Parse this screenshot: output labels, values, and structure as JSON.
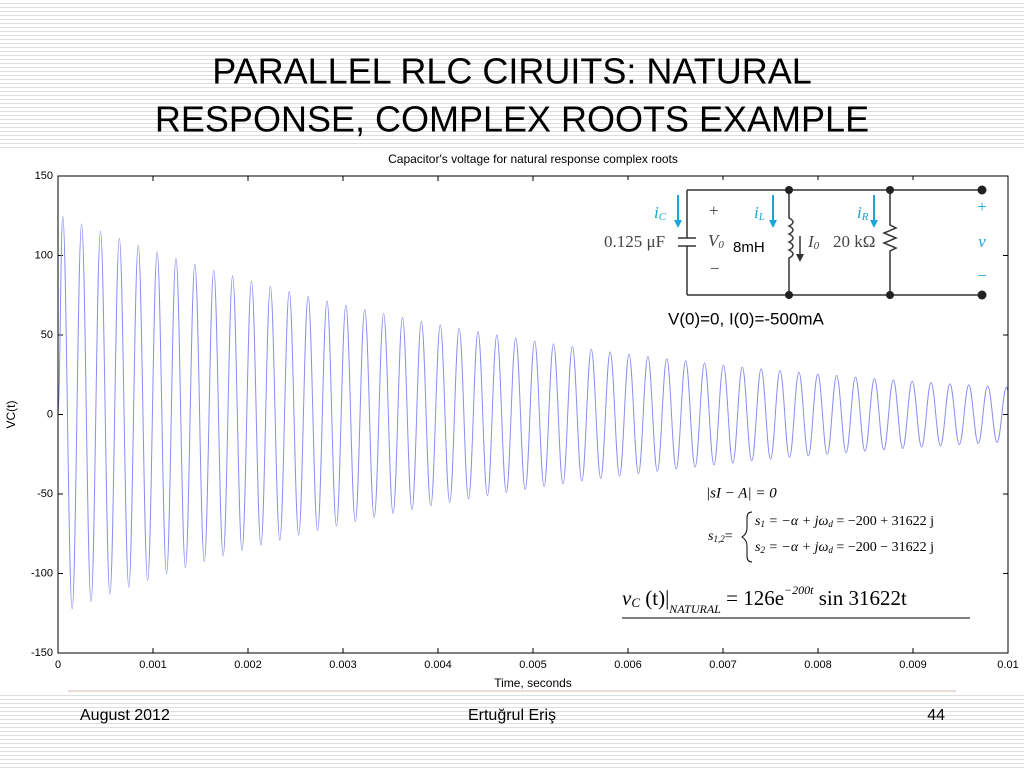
{
  "slide": {
    "title_lines": [
      "PARALLEL RLC CIRUITS: NATURAL",
      "RESPONSE, COMPLEX ROOTS EXAMPLE"
    ],
    "footer": {
      "date": "August 2012",
      "author": "Ertuğrul Eriş",
      "page": "44"
    }
  },
  "chart_data": {
    "type": "line",
    "title": "Capacitor's voltage for natural response complex roots",
    "x_label": "Time, seconds",
    "y_label": "VC(t)",
    "color": "#8c8cf2",
    "xlim": [
      0,
      0.01
    ],
    "xticks": [
      0,
      0.001,
      0.002,
      0.003,
      0.004,
      0.005,
      0.006,
      0.007,
      0.008,
      0.009,
      0.01
    ],
    "ylim": [
      -150,
      150
    ],
    "yticks": [
      -150,
      -100,
      -50,
      0,
      50,
      100,
      150
    ],
    "x": [
      0,
      4.97e-05,
      0.000149,
      0.0002484,
      0.0003477,
      0.0004471,
      0.0005464,
      0.0006458,
      0.0007451,
      0.0008445,
      0.0009438,
      0.0010432,
      0.0011425,
      0.0012419,
      0.0013412,
      0.0014406,
      0.0015399,
      0.0016393,
      0.0017386,
      0.001838,
      0.0019373,
      0.0020367,
      0.002136,
      0.0022354,
      0.0023347,
      0.0024341,
      0.0025334,
      0.0026328,
      0.0027321,
      0.0028315,
      0.0029308,
      0.0030302,
      0.0031295,
      0.0032289,
      0.0033282,
      0.0034276,
      0.0035269,
      0.0036263,
      0.0037256,
      0.003825,
      0.0039243,
      0.0040237,
      0.004123,
      0.0042224,
      0.0043217,
      0.0044211,
      0.0045204,
      0.0046198,
      0.0047191,
      0.0048185,
      0.0049178,
      0.0050172,
      0.0051165,
      0.0052159,
      0.0053152,
      0.0054146,
      0.0055139,
      0.0056133,
      0.0057126,
      0.005812,
      0.0059113,
      0.0060107,
      0.00611,
      0.0062094,
      0.0063087,
      0.0064081,
      0.0065074,
      0.0066068,
      0.0067061,
      0.0068055,
      0.0069048,
      0.0070042,
      0.0071035,
      0.0072029,
      0.0073022,
      0.0074016,
      0.0075009,
      0.0076003,
      0.0076996,
      0.007799,
      0.0078983,
      0.0079977,
      0.008097,
      0.0081964,
      0.0082957,
      0.0083951,
      0.0084944,
      0.0085938,
      0.0086931,
      0.0087925,
      0.0088918,
      0.0089912,
      0.0090905,
      0.0091899,
      0.0092892,
      0.0093886,
      0.0094879,
      0.0095873,
      0.0096866,
      0.009786,
      0.0098853,
      0.0099847,
      0.01
    ],
    "values": [
      0,
      124.8,
      -122.3,
      119.9,
      -117.6,
      115.3,
      -113.0,
      110.8,
      -108.6,
      106.5,
      -104.4,
      102.3,
      -100.3,
      98.3,
      -96.4,
      94.5,
      -92.6,
      90.8,
      -89.0,
      87.3,
      -85.6,
      83.8,
      -82.2,
      80.6,
      -79.0,
      77.4,
      -75.9,
      74.4,
      -73.0,
      71.5,
      -70.1,
      68.7,
      -67.3,
      66.0,
      -64.7,
      63.4,
      -62.2,
      61.0,
      -59.8,
      58.6,
      -57.4,
      56.3,
      -55.3,
      54.2,
      -53.1,
      52.1,
      -51.1,
      50.1,
      -49.1,
      48.1,
      -47.2,
      46.2,
      -45.3,
      44.4,
      -43.6,
      42.7,
      -41.9,
      41.0,
      -40.2,
      39.4,
      -38.7,
      37.9,
      -37.2,
      36.4,
      -35.7,
      35.0,
      -34.3,
      33.7,
      -33.0,
      32.4,
      -31.7,
      31.0,
      -30.4,
      29.8,
      -29.2,
      28.7,
      -28.1,
      27.6,
      -27.0,
      26.5,
      -26.0,
      25.5,
      -25.0,
      24.5,
      -24.0,
      23.5,
      -23.1,
      22.6,
      -22.2,
      21.7,
      -21.3,
      20.9,
      -20.5,
      20.1,
      -19.7,
      19.3,
      -18.9,
      18.6,
      -18.2,
      17.9,
      -17.5,
      17.2,
      15.0
    ]
  },
  "circuit": {
    "i_c": "i",
    "i_c_sub": "C",
    "plus_left": "+",
    "v0": "V",
    "v0_sub": "0",
    "cap": "0.125 μF",
    "minus_left": "−",
    "i_l": "i",
    "i_l_sub": "L",
    "ind": "8mH",
    "i0": "I",
    "i0_sub": "0",
    "i_r": "i",
    "i_r_sub": "R",
    "res": "20 kΩ",
    "plus_right": "+",
    "v": "v",
    "minus_right": "−"
  },
  "initial_conditions": "V(0)=0, I(0)=-500mA",
  "equations": {
    "char": "|sI − A| = 0",
    "s12": {
      "s": "s",
      "sub": "1,2",
      "eq": "="
    },
    "s1": {
      "s": "s",
      "sub": "1",
      "mid": " = −α + jω",
      "sub2": "d",
      "tail": " = −200 + 31622 j"
    },
    "s2": {
      "s": "s",
      "sub": "2",
      "mid": " = −α + jω",
      "sub2": "d",
      "tail": " = −200 − 31622 j"
    },
    "final": {
      "v": "v",
      "v_sub": "C",
      "arg": " (t)",
      "bar": "|",
      "bar_sub": "NATURAL",
      "rhs": " = 126e",
      "exp": "−200t",
      "tail": " sin 31622t"
    }
  }
}
